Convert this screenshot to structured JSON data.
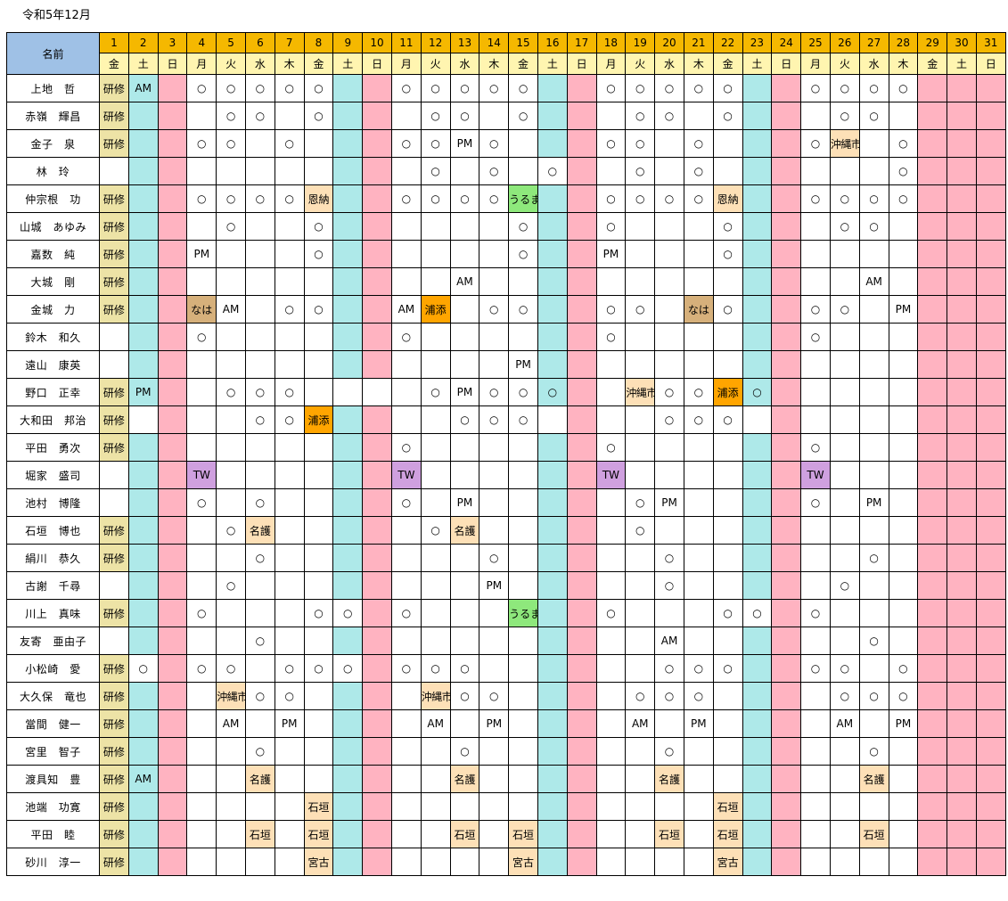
{
  "title": "令和5年12月",
  "header": {
    "name_label": "名前"
  },
  "days": [
    {
      "num": "1",
      "dow": "金"
    },
    {
      "num": "2",
      "dow": "土"
    },
    {
      "num": "3",
      "dow": "日"
    },
    {
      "num": "4",
      "dow": "月"
    },
    {
      "num": "5",
      "dow": "火"
    },
    {
      "num": "6",
      "dow": "水"
    },
    {
      "num": "7",
      "dow": "木"
    },
    {
      "num": "8",
      "dow": "金"
    },
    {
      "num": "9",
      "dow": "土"
    },
    {
      "num": "10",
      "dow": "日"
    },
    {
      "num": "11",
      "dow": "月"
    },
    {
      "num": "12",
      "dow": "火"
    },
    {
      "num": "13",
      "dow": "水"
    },
    {
      "num": "14",
      "dow": "木"
    },
    {
      "num": "15",
      "dow": "金"
    },
    {
      "num": "16",
      "dow": "土"
    },
    {
      "num": "17",
      "dow": "日"
    },
    {
      "num": "18",
      "dow": "月"
    },
    {
      "num": "19",
      "dow": "火"
    },
    {
      "num": "20",
      "dow": "水"
    },
    {
      "num": "21",
      "dow": "木"
    },
    {
      "num": "22",
      "dow": "金"
    },
    {
      "num": "23",
      "dow": "土"
    },
    {
      "num": "24",
      "dow": "日"
    },
    {
      "num": "25",
      "dow": "月"
    },
    {
      "num": "26",
      "dow": "火"
    },
    {
      "num": "27",
      "dow": "水"
    },
    {
      "num": "28",
      "dow": "木"
    },
    {
      "num": "29",
      "dow": "金"
    },
    {
      "num": "30",
      "dow": "土"
    },
    {
      "num": "31",
      "dow": "日"
    }
  ],
  "colors": {
    "day_header": "#f5b800",
    "name_header": "#9fc1e6",
    "friday": "#fff5b0",
    "saturday": "#aee9e9",
    "sunday": "#ffb3c1",
    "kenshu": "#ede3a6",
    "place": "#fde0b7",
    "urasoe": "#ffa500",
    "naha": "#d6b07b",
    "uruma": "#8ee87c",
    "tw": "#cfa0df"
  },
  "rows": [
    {
      "name": "上地　哲",
      "cells": {
        "1": "研修",
        "2": "AM",
        "4": "○",
        "5": "○",
        "6": "○",
        "7": "○",
        "8": "○",
        "11": "○",
        "12": "○",
        "13": "○",
        "14": "○",
        "15": "○",
        "18": "○",
        "19": "○",
        "20": "○",
        "21": "○",
        "22": "○",
        "25": "○",
        "26": "○",
        "27": "○",
        "28": "○"
      }
    },
    {
      "name": "赤嶺　輝昌",
      "cells": {
        "1": "研修",
        "5": "○",
        "6": "○",
        "8": "○",
        "12": "○",
        "13": "○",
        "15": "○",
        "19": "○",
        "20": "○",
        "22": "○",
        "26": "○",
        "27": "○"
      }
    },
    {
      "name": "金子　泉",
      "cells": {
        "1": "研修",
        "4": "○",
        "5": "○",
        "7": "○",
        "11": "○",
        "12": "○",
        "13": "PM",
        "14": "○",
        "18": "○",
        "19": "○",
        "21": "○",
        "25": "○",
        "26": "沖縄市",
        "28": "○"
      }
    },
    {
      "name": "林　玲",
      "cells": {
        "12": "○",
        "14": "○",
        "16": "○",
        "19": "○",
        "21": "○",
        "28": "○"
      }
    },
    {
      "name": "仲宗根　功",
      "cells": {
        "1": "研修",
        "4": "○",
        "5": "○",
        "6": "○",
        "7": "○",
        "8": "恩納",
        "11": "○",
        "12": "○",
        "13": "○",
        "14": "○",
        "15": "うるま",
        "18": "○",
        "19": "○",
        "20": "○",
        "21": "○",
        "22": "恩納",
        "25": "○",
        "26": "○",
        "27": "○",
        "28": "○"
      }
    },
    {
      "name": "山城　あゆみ",
      "cells": {
        "1": "研修",
        "5": "○",
        "8": "○",
        "15": "○",
        "18": "○",
        "22": "○",
        "26": "○",
        "27": "○"
      }
    },
    {
      "name": "嘉数　純",
      "cells": {
        "1": "研修",
        "4": "PM",
        "8": "○",
        "15": "○",
        "18": "PM",
        "22": "○"
      }
    },
    {
      "name": "大城　剛",
      "cells": {
        "1": "研修",
        "13": "AM",
        "27": "AM"
      }
    },
    {
      "name": "金城　力",
      "cells": {
        "1": "研修",
        "4": "なは",
        "5": "AM",
        "7": "○",
        "8": "○",
        "11": "AM",
        "12": "浦添",
        "14": "○",
        "15": "○",
        "18": "○",
        "19": "○",
        "21": "なは",
        "22": "○",
        "25": "○",
        "26": "○",
        "28": "PM"
      }
    },
    {
      "name": "鈴木　和久",
      "cells": {
        "4": "○",
        "11": "○",
        "18": "○",
        "25": "○"
      }
    },
    {
      "name": "遠山　康英",
      "cells": {
        "15": "PM"
      }
    },
    {
      "name": "野口　正幸",
      "cells": {
        "1": "研修",
        "2": "PM",
        "5": "○",
        "6": "○",
        "7": "○",
        "12": "○",
        "13": "PM",
        "14": "○",
        "15": "○",
        "16": "○",
        "19": "沖縄市",
        "20": "○",
        "21": "○",
        "22": "浦添",
        "23": "○"
      }
    },
    {
      "name": "大和田　邦治",
      "cells": {
        "1": "研修",
        "6": "○",
        "7": "○",
        "8": "浦添",
        "13": "○",
        "14": "○",
        "15": "○",
        "20": "○",
        "21": "○",
        "22": "○"
      }
    },
    {
      "name": "平田　勇次",
      "cells": {
        "1": "研修",
        "11": "○",
        "18": "○",
        "25": "○"
      }
    },
    {
      "name": "堀家　盛司",
      "cells": {
        "4": "TW",
        "11": "TW",
        "18": "TW",
        "25": "TW"
      }
    },
    {
      "name": "池村　博隆",
      "cells": {
        "4": "○",
        "6": "○",
        "11": "○",
        "13": "PM",
        "19": "○",
        "20": "PM",
        "25": "○",
        "27": "PM"
      }
    },
    {
      "name": "石垣　博也",
      "cells": {
        "1": "研修",
        "5": "○",
        "6": "名護",
        "12": "○",
        "13": "名護",
        "19": "○"
      }
    },
    {
      "name": "絹川　恭久",
      "cells": {
        "1": "研修",
        "6": "○",
        "14": "○",
        "20": "○",
        "27": "○"
      }
    },
    {
      "name": "古謝　千尋",
      "cells": {
        "5": "○",
        "14": "PM",
        "20": "○",
        "26": "○"
      }
    },
    {
      "name": "川上　真味",
      "cells": {
        "1": "研修",
        "4": "○",
        "8": "○",
        "9": "○",
        "11": "○",
        "15": "うるま",
        "18": "○",
        "22": "○",
        "23": "○",
        "25": "○"
      }
    },
    {
      "name": "友寄　亜由子",
      "cells": {
        "6": "○",
        "20": "AM",
        "27": "○"
      }
    },
    {
      "name": "小松崎　愛",
      "cells": {
        "1": "研修",
        "2": "○",
        "4": "○",
        "5": "○",
        "7": "○",
        "8": "○",
        "9": "○",
        "11": "○",
        "12": "○",
        "13": "○",
        "20": "○",
        "21": "○",
        "22": "○",
        "25": "○",
        "26": "○",
        "28": "○"
      }
    },
    {
      "name": "大久保　竜也",
      "cells": {
        "1": "研修",
        "5": "沖縄市",
        "6": "○",
        "7": "○",
        "12": "沖縄市",
        "13": "○",
        "14": "○",
        "19": "○",
        "20": "○",
        "21": "○",
        "26": "○",
        "27": "○",
        "28": "○"
      }
    },
    {
      "name": "當間　健一",
      "cells": {
        "1": "研修",
        "5": "AM",
        "7": "PM",
        "12": "AM",
        "14": "PM",
        "19": "AM",
        "21": "PM",
        "26": "AM",
        "28": "PM"
      }
    },
    {
      "name": "宮里　智子",
      "cells": {
        "1": "研修",
        "6": "○",
        "13": "○",
        "20": "○",
        "27": "○"
      }
    },
    {
      "name": "渡具知　豊",
      "cells": {
        "1": "研修",
        "2": "AM",
        "6": "名護",
        "13": "名護",
        "20": "名護",
        "27": "名護"
      }
    },
    {
      "name": "池端　功寛",
      "cells": {
        "1": "研修",
        "8": "石垣",
        "22": "石垣"
      }
    },
    {
      "name": "平田　睦",
      "cells": {
        "1": "研修",
        "6": "石垣",
        "8": "石垣",
        "13": "石垣",
        "15": "石垣",
        "20": "石垣",
        "22": "石垣",
        "27": "石垣"
      }
    },
    {
      "name": "砂川　淳一",
      "cells": {
        "1": "研修",
        "8": "宮古",
        "15": "宮古",
        "22": "宮古"
      }
    }
  ]
}
